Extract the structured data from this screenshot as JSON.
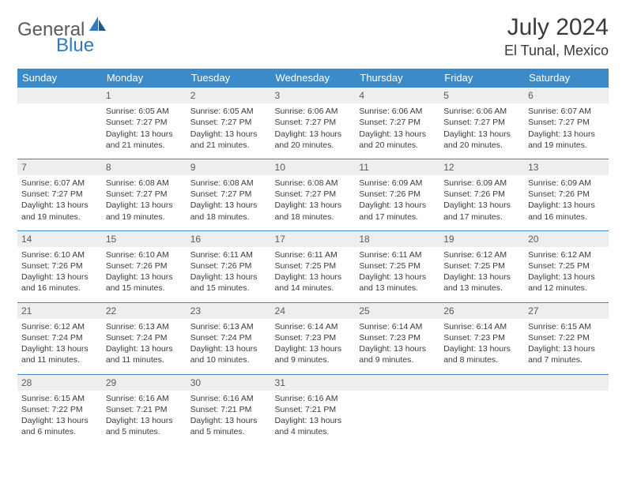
{
  "logo": {
    "text1": "General",
    "text2": "Blue"
  },
  "title": "July 2024",
  "location": "El Tunal, Mexico",
  "header_bg": "#3b8bcb",
  "header_fg": "#ffffff",
  "daynum_bg": "#eceef0",
  "text_color": "#3a3a3a",
  "weekdays": [
    "Sunday",
    "Monday",
    "Tuesday",
    "Wednesday",
    "Thursday",
    "Friday",
    "Saturday"
  ],
  "start_offset": 1,
  "days": [
    {
      "n": 1,
      "sr": "6:05 AM",
      "ss": "7:27 PM",
      "dl1": "Daylight: 13 hours",
      "dl2": "and 21 minutes."
    },
    {
      "n": 2,
      "sr": "6:05 AM",
      "ss": "7:27 PM",
      "dl1": "Daylight: 13 hours",
      "dl2": "and 21 minutes."
    },
    {
      "n": 3,
      "sr": "6:06 AM",
      "ss": "7:27 PM",
      "dl1": "Daylight: 13 hours",
      "dl2": "and 20 minutes."
    },
    {
      "n": 4,
      "sr": "6:06 AM",
      "ss": "7:27 PM",
      "dl1": "Daylight: 13 hours",
      "dl2": "and 20 minutes."
    },
    {
      "n": 5,
      "sr": "6:06 AM",
      "ss": "7:27 PM",
      "dl1": "Daylight: 13 hours",
      "dl2": "and 20 minutes."
    },
    {
      "n": 6,
      "sr": "6:07 AM",
      "ss": "7:27 PM",
      "dl1": "Daylight: 13 hours",
      "dl2": "and 19 minutes."
    },
    {
      "n": 7,
      "sr": "6:07 AM",
      "ss": "7:27 PM",
      "dl1": "Daylight: 13 hours",
      "dl2": "and 19 minutes."
    },
    {
      "n": 8,
      "sr": "6:08 AM",
      "ss": "7:27 PM",
      "dl1": "Daylight: 13 hours",
      "dl2": "and 19 minutes."
    },
    {
      "n": 9,
      "sr": "6:08 AM",
      "ss": "7:27 PM",
      "dl1": "Daylight: 13 hours",
      "dl2": "and 18 minutes."
    },
    {
      "n": 10,
      "sr": "6:08 AM",
      "ss": "7:27 PM",
      "dl1": "Daylight: 13 hours",
      "dl2": "and 18 minutes."
    },
    {
      "n": 11,
      "sr": "6:09 AM",
      "ss": "7:26 PM",
      "dl1": "Daylight: 13 hours",
      "dl2": "and 17 minutes."
    },
    {
      "n": 12,
      "sr": "6:09 AM",
      "ss": "7:26 PM",
      "dl1": "Daylight: 13 hours",
      "dl2": "and 17 minutes."
    },
    {
      "n": 13,
      "sr": "6:09 AM",
      "ss": "7:26 PM",
      "dl1": "Daylight: 13 hours",
      "dl2": "and 16 minutes."
    },
    {
      "n": 14,
      "sr": "6:10 AM",
      "ss": "7:26 PM",
      "dl1": "Daylight: 13 hours",
      "dl2": "and 16 minutes."
    },
    {
      "n": 15,
      "sr": "6:10 AM",
      "ss": "7:26 PM",
      "dl1": "Daylight: 13 hours",
      "dl2": "and 15 minutes."
    },
    {
      "n": 16,
      "sr": "6:11 AM",
      "ss": "7:26 PM",
      "dl1": "Daylight: 13 hours",
      "dl2": "and 15 minutes."
    },
    {
      "n": 17,
      "sr": "6:11 AM",
      "ss": "7:25 PM",
      "dl1": "Daylight: 13 hours",
      "dl2": "and 14 minutes."
    },
    {
      "n": 18,
      "sr": "6:11 AM",
      "ss": "7:25 PM",
      "dl1": "Daylight: 13 hours",
      "dl2": "and 13 minutes."
    },
    {
      "n": 19,
      "sr": "6:12 AM",
      "ss": "7:25 PM",
      "dl1": "Daylight: 13 hours",
      "dl2": "and 13 minutes."
    },
    {
      "n": 20,
      "sr": "6:12 AM",
      "ss": "7:25 PM",
      "dl1": "Daylight: 13 hours",
      "dl2": "and 12 minutes."
    },
    {
      "n": 21,
      "sr": "6:12 AM",
      "ss": "7:24 PM",
      "dl1": "Daylight: 13 hours",
      "dl2": "and 11 minutes."
    },
    {
      "n": 22,
      "sr": "6:13 AM",
      "ss": "7:24 PM",
      "dl1": "Daylight: 13 hours",
      "dl2": "and 11 minutes."
    },
    {
      "n": 23,
      "sr": "6:13 AM",
      "ss": "7:24 PM",
      "dl1": "Daylight: 13 hours",
      "dl2": "and 10 minutes."
    },
    {
      "n": 24,
      "sr": "6:14 AM",
      "ss": "7:23 PM",
      "dl1": "Daylight: 13 hours",
      "dl2": "and 9 minutes."
    },
    {
      "n": 25,
      "sr": "6:14 AM",
      "ss": "7:23 PM",
      "dl1": "Daylight: 13 hours",
      "dl2": "and 9 minutes."
    },
    {
      "n": 26,
      "sr": "6:14 AM",
      "ss": "7:23 PM",
      "dl1": "Daylight: 13 hours",
      "dl2": "and 8 minutes."
    },
    {
      "n": 27,
      "sr": "6:15 AM",
      "ss": "7:22 PM",
      "dl1": "Daylight: 13 hours",
      "dl2": "and 7 minutes."
    },
    {
      "n": 28,
      "sr": "6:15 AM",
      "ss": "7:22 PM",
      "dl1": "Daylight: 13 hours",
      "dl2": "and 6 minutes."
    },
    {
      "n": 29,
      "sr": "6:16 AM",
      "ss": "7:21 PM",
      "dl1": "Daylight: 13 hours",
      "dl2": "and 5 minutes."
    },
    {
      "n": 30,
      "sr": "6:16 AM",
      "ss": "7:21 PM",
      "dl1": "Daylight: 13 hours",
      "dl2": "and 5 minutes."
    },
    {
      "n": 31,
      "sr": "6:16 AM",
      "ss": "7:21 PM",
      "dl1": "Daylight: 13 hours",
      "dl2": "and 4 minutes."
    }
  ]
}
